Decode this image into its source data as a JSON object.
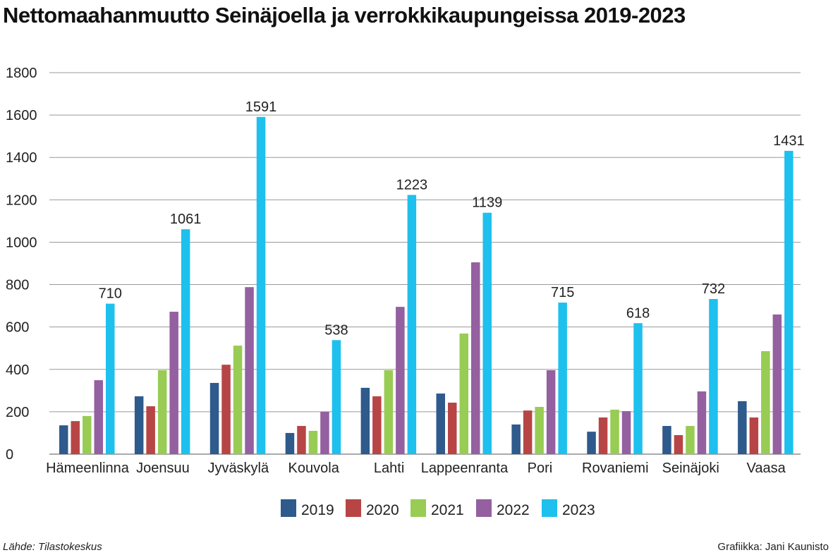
{
  "title": "Nettomaahanmuutto Seinäjoella ja verrokkikaupungeissa 2019-2023",
  "source": "Lähde: Tilastokeskus",
  "credit": "Grafiikka: Jani Kaunisto",
  "chart_data": {
    "type": "bar",
    "title": "Nettomaahanmuutto Seinäjoella ja verrokkikaupungeissa 2019-2023",
    "categories": [
      "Hämeenlinna",
      "Joensuu",
      "Jyväskylä",
      "Kouvola",
      "Lahti",
      "Lappeenranta",
      "Pori",
      "Rovaniemi",
      "Seinäjoki",
      "Vaasa"
    ],
    "ylim": [
      0,
      1800
    ],
    "yticks": [
      0,
      200,
      400,
      600,
      800,
      1000,
      1200,
      1400,
      1600,
      1800
    ],
    "grid": true,
    "legend": "bottom",
    "series": [
      {
        "name": "2019",
        "color": "#2e5a8c",
        "values": [
          136,
          273,
          336,
          100,
          313,
          286,
          140,
          106,
          133,
          250
        ]
      },
      {
        "name": "2020",
        "color": "#b84545",
        "values": [
          156,
          226,
          422,
          133,
          273,
          243,
          206,
          173,
          90,
          173
        ]
      },
      {
        "name": "2021",
        "color": "#98cc55",
        "values": [
          180,
          396,
          512,
          110,
          396,
          569,
          223,
          210,
          133,
          486
        ]
      },
      {
        "name": "2022",
        "color": "#9460a0",
        "values": [
          349,
          672,
          788,
          200,
          695,
          905,
          396,
          203,
          296,
          659
        ]
      },
      {
        "name": "2023",
        "color": "#1ec0ee",
        "values": [
          710,
          1061,
          1591,
          538,
          1223,
          1139,
          715,
          618,
          732,
          1431
        ],
        "labeled": true
      }
    ]
  }
}
